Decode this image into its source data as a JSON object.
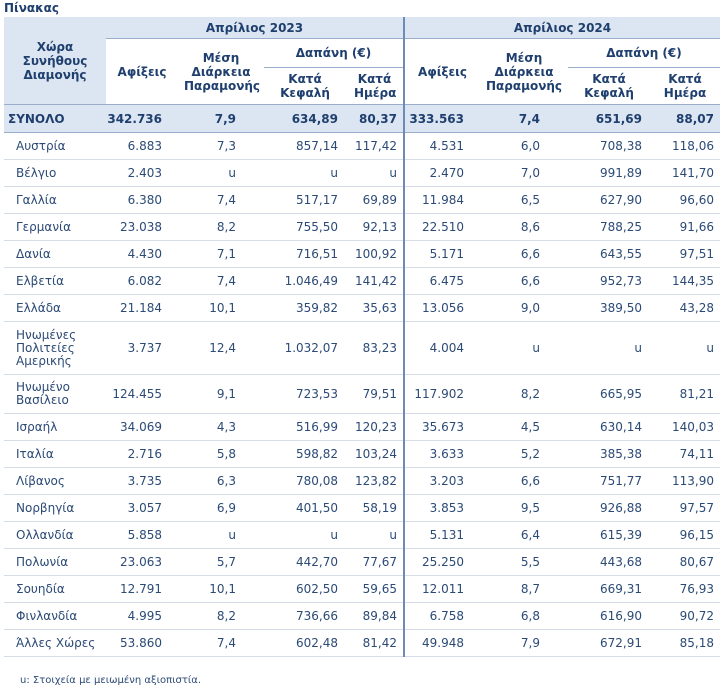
{
  "caption": "Πίνακας",
  "header": {
    "country": "Χώρα Συνήθους Διαμονής",
    "year_2023": "Απρίλιος 2023",
    "year_2024": "Απρίλιος 2024",
    "arrivals": "Αφίξεις",
    "avg_stay": "Μέση Διάρκεια Παραμονής",
    "spending": "Δαπάνη (€)",
    "per_capita": "Κατά Κεφαλή",
    "per_day": "Κατά Ημέρα"
  },
  "total": {
    "label": "ΣΥΝΟΛΟ",
    "v": [
      "342.736",
      "7,9",
      "634,89",
      "80,37",
      "333.563",
      "7,4",
      "651,69",
      "88,07"
    ]
  },
  "rows": [
    {
      "name": "Αυστρία",
      "v": [
        "6.883",
        "7,3",
        "857,14",
        "117,42",
        "4.531",
        "6,0",
        "708,38",
        "118,06"
      ]
    },
    {
      "name": "Βέλγιο",
      "v": [
        "2.403",
        "u",
        "u",
        "u",
        "2.470",
        "7,0",
        "991,89",
        "141,70"
      ]
    },
    {
      "name": "Γαλλία",
      "v": [
        "6.380",
        "7,4",
        "517,17",
        "69,89",
        "11.984",
        "6,5",
        "627,90",
        "96,60"
      ]
    },
    {
      "name": "Γερμανία",
      "v": [
        "23.038",
        "8,2",
        "755,50",
        "92,13",
        "22.510",
        "8,6",
        "788,25",
        "91,66"
      ]
    },
    {
      "name": "Δανία",
      "v": [
        "4.430",
        "7,1",
        "716,51",
        "100,92",
        "5.171",
        "6,6",
        "643,55",
        "97,51"
      ]
    },
    {
      "name": "Ελβετία",
      "v": [
        "6.082",
        "7,4",
        "1.046,49",
        "141,42",
        "6.475",
        "6,6",
        "952,73",
        "144,35"
      ]
    },
    {
      "name": "Ελλάδα",
      "v": [
        "21.184",
        "10,1",
        "359,82",
        "35,63",
        "13.056",
        "9,0",
        "389,50",
        "43,28"
      ]
    },
    {
      "name": "Ηνωμένες Πολιτείες Αμερικής",
      "v": [
        "3.737",
        "12,4",
        "1.032,07",
        "83,23",
        "4.004",
        "u",
        "u",
        "u"
      ]
    },
    {
      "name": "Ηνωμένο Βασίλειο",
      "v": [
        "124.455",
        "9,1",
        "723,53",
        "79,51",
        "117.902",
        "8,2",
        "665,95",
        "81,21"
      ]
    },
    {
      "name": "Ισραήλ",
      "v": [
        "34.069",
        "4,3",
        "516,99",
        "120,23",
        "35.673",
        "4,5",
        "630,14",
        "140,03"
      ]
    },
    {
      "name": "Ιταλία",
      "v": [
        "2.716",
        "5,8",
        "598,82",
        "103,24",
        "3.633",
        "5,2",
        "385,38",
        "74,11"
      ]
    },
    {
      "name": "Λίβανος",
      "v": [
        "3.735",
        "6,3",
        "780,08",
        "123,82",
        "3.203",
        "6,6",
        "751,77",
        "113,90"
      ]
    },
    {
      "name": "Νορβηγία",
      "v": [
        "3.057",
        "6,9",
        "401,50",
        "58,19",
        "3.853",
        "9,5",
        "926,88",
        "97,57"
      ]
    },
    {
      "name": "Ολλανδία",
      "v": [
        "5.858",
        "u",
        "u",
        "u",
        "5.131",
        "6,4",
        "615,39",
        "96,15"
      ]
    },
    {
      "name": "Πολωνία",
      "v": [
        "23.063",
        "5,7",
        "442,70",
        "77,67",
        "25.250",
        "5,5",
        "443,68",
        "80,67"
      ]
    },
    {
      "name": "Σουηδία",
      "v": [
        "12.791",
        "10,1",
        "602,50",
        "59,65",
        "12.011",
        "8,7",
        "669,31",
        "76,93"
      ]
    },
    {
      "name": "Φινλανδία",
      "v": [
        "4.995",
        "8,2",
        "736,66",
        "89,84",
        "6.758",
        "6,8",
        "616,90",
        "90,72"
      ]
    },
    {
      "name": "Άλλες Χώρες",
      "v": [
        "53.860",
        "7,4",
        "602,48",
        "81,42",
        "49.948",
        "7,9",
        "672,91",
        "85,18"
      ]
    }
  ],
  "footnote": "u:  Στοιχεία με μειωμένη αξιοπιστία."
}
